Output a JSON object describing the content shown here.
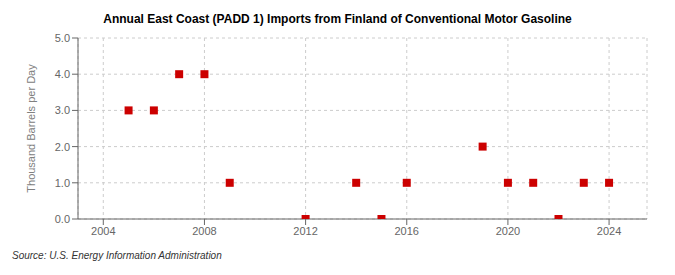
{
  "chart_data": {
    "type": "scatter",
    "title": "Annual East Coast (PADD 1) Imports from Finland of Conventional Motor Gasoline",
    "y_label": "Thousand Barrels per Day",
    "annotations": [
      "Source: U.S. Energy Information Administration"
    ],
    "x": [
      2005,
      2006,
      2007,
      2008,
      2009,
      2012,
      2014,
      2015,
      2016,
      2019,
      2020,
      2021,
      2022,
      2023,
      2024
    ],
    "values": [
      3.0,
      3.0,
      4.0,
      4.0,
      1.0,
      0.0,
      1.0,
      0.0,
      1.0,
      2.0,
      1.0,
      1.0,
      0.0,
      1.0,
      1.0
    ],
    "color": "#cc0000",
    "marker": "square",
    "xlim": [
      2003,
      2025.5
    ],
    "ylim": [
      0.0,
      5.0
    ],
    "xticks": [
      2004,
      2008,
      2012,
      2016,
      2020,
      2024
    ],
    "yticks": [
      {
        "value": 0.0,
        "label": "0.0"
      },
      {
        "value": 1.0,
        "label": "1.0"
      },
      {
        "value": 2.0,
        "label": "2.0"
      },
      {
        "value": 3.0,
        "label": "3.0"
      },
      {
        "value": 4.0,
        "label": "4.0"
      },
      {
        "value": 5.0,
        "label": "5.0"
      }
    ],
    "grid": true
  }
}
